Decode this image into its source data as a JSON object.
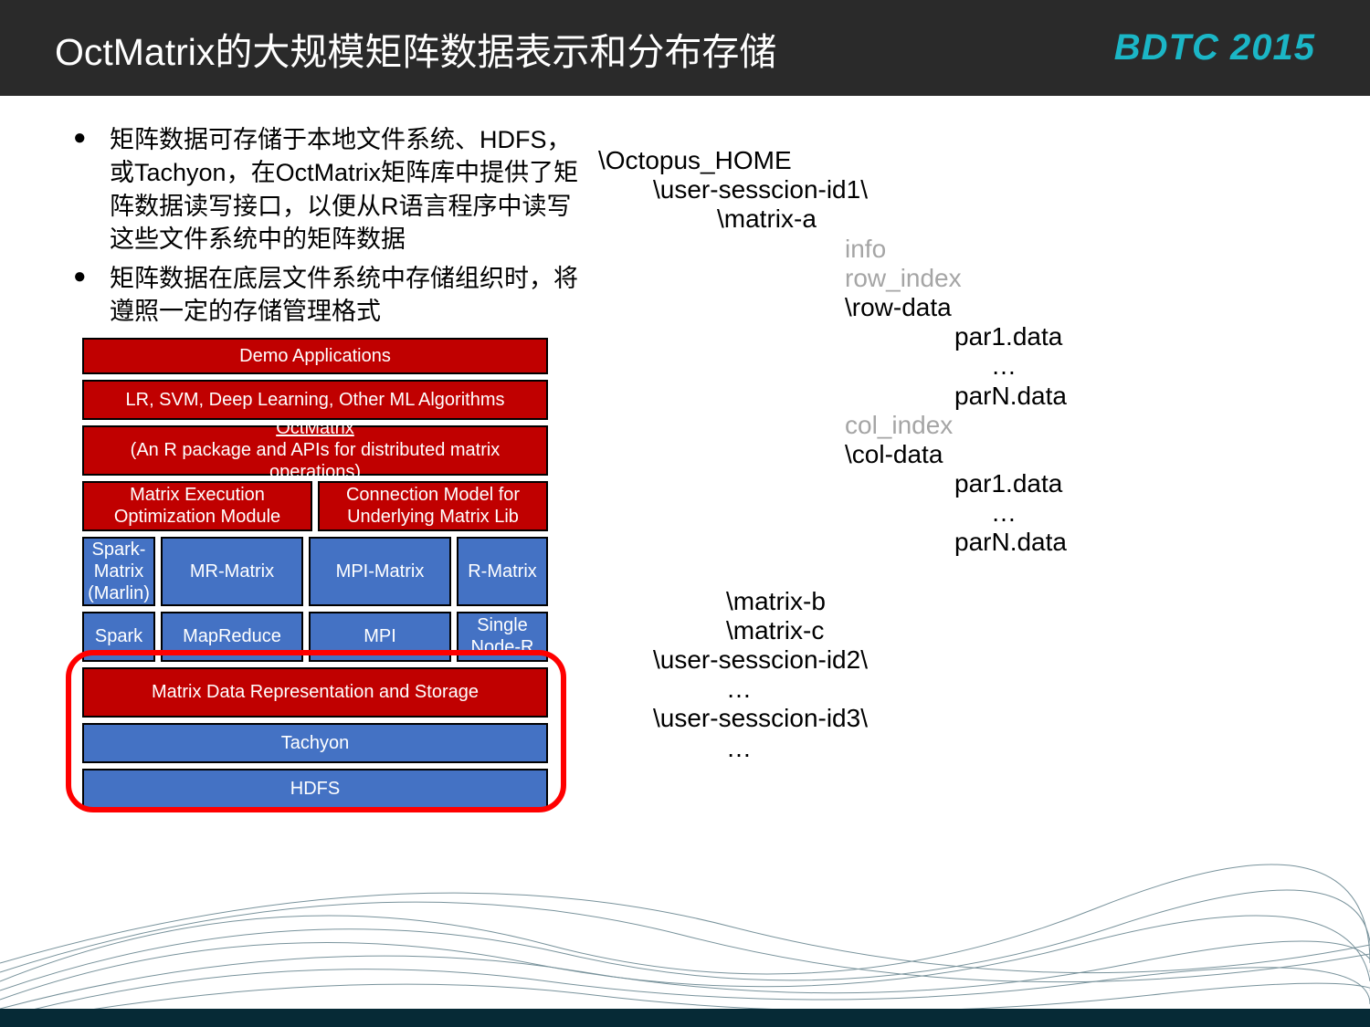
{
  "header": {
    "title": "OctMatrix的大规模矩阵数据表示和分布存储",
    "logo": "BDTC 2015"
  },
  "bullets": [
    "矩阵数据可存储于本地文件系统、HDFS，或Tachyon，在OctMatrix矩阵库中提供了矩阵数据读写接口，以便从R语言程序中读写这些文件系统中的矩阵数据",
    "矩阵数据在底层文件系统中存储组织时，将遵照一定的存储管理格式"
  ],
  "diagram": {
    "type": "layered-architecture",
    "colors": {
      "red": "#c00000",
      "blue": "#4472c4",
      "border": "#000000",
      "text": "#ffffff",
      "highlight_border": "#ff0000"
    },
    "layers": [
      {
        "label": "Demo Applications",
        "color": "red"
      },
      {
        "label": "LR, SVM, Deep Learning, Other ML Algorithms",
        "color": "red"
      },
      {
        "label_top": "OctMatrix",
        "label_bottom": "(An R package and APIs for distributed matrix operations)",
        "color": "red"
      },
      {
        "split": [
          {
            "label_top": "Matrix Execution",
            "label_bottom": "Optimization Module",
            "color": "red"
          },
          {
            "label_top": "Connection Model for",
            "label_bottom": "Underlying Matrix Lib",
            "color": "red"
          }
        ]
      },
      {
        "split": [
          {
            "label_top": "Spark-",
            "label_mid": "Matrix",
            "label_bottom": "(Marlin)",
            "color": "blue"
          },
          {
            "label": "MR-Matrix",
            "color": "blue"
          },
          {
            "label": "MPI-Matrix",
            "color": "blue"
          },
          {
            "label": "R-Matrix",
            "color": "blue"
          }
        ]
      },
      {
        "split": [
          {
            "label": "Spark",
            "color": "blue"
          },
          {
            "label": "MapReduce",
            "color": "blue"
          },
          {
            "label": "MPI",
            "color": "blue"
          },
          {
            "label_top": "Single",
            "label_bottom": "Node-R",
            "color": "blue"
          }
        ]
      },
      {
        "label": "Matrix Data Representation and Storage",
        "color": "red"
      },
      {
        "label": "Tachyon",
        "color": "blue"
      },
      {
        "label": "HDFS",
        "color": "blue"
      }
    ],
    "highlight": {
      "from_layer_index": 6,
      "to_layer_index": 8
    }
  },
  "tree": {
    "lines": [
      {
        "text": "\\Octopus_HOME",
        "indent": "ind0",
        "grey": false
      },
      {
        "text": "\\user-sesscion-id1\\",
        "indent": "ind1",
        "grey": false
      },
      {
        "text": "\\matrix-a",
        "indent": "ind2",
        "grey": false
      },
      {
        "text": "info",
        "indent": "ind3",
        "grey": true
      },
      {
        "text": "row_index",
        "indent": "ind3",
        "grey": true
      },
      {
        "text": "\\row-data",
        "indent": "ind3",
        "grey": false
      },
      {
        "text": "par1.data",
        "indent": "ind4",
        "grey": false
      },
      {
        "text": "…",
        "indent": "ind4",
        "grey": false,
        "center_shift": true
      },
      {
        "text": "parN.data",
        "indent": "ind4",
        "grey": false
      },
      {
        "text": "col_index",
        "indent": "ind3",
        "grey": true
      },
      {
        "text": "\\col-data",
        "indent": "ind3",
        "grey": false
      },
      {
        "text": "par1.data",
        "indent": "ind4",
        "grey": false
      },
      {
        "text": "…",
        "indent": "ind4",
        "grey": false,
        "center_shift": true
      },
      {
        "text": "parN.data",
        "indent": "ind4",
        "grey": false
      },
      {
        "text": "",
        "indent": "ind0",
        "grey": false,
        "blank": true
      },
      {
        "text": "\\matrix-b",
        "indent": "ind2b",
        "grey": false
      },
      {
        "text": "\\matrix-c",
        "indent": "ind2b",
        "grey": false
      },
      {
        "text": "\\user-sesscion-id2\\",
        "indent": "ind1",
        "grey": false
      },
      {
        "text": "…",
        "indent": "ind2b",
        "grey": false
      },
      {
        "text": "\\user-sesscion-id3\\",
        "indent": "ind1",
        "grey": false
      },
      {
        "text": "…",
        "indent": "ind2b",
        "grey": false
      }
    ]
  }
}
